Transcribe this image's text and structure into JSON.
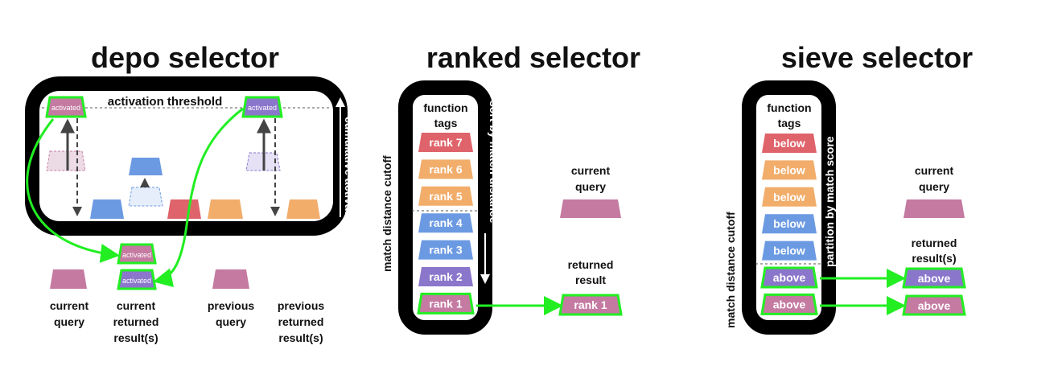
{
  "colors": {
    "pink": "#c47aa1",
    "pink_faint": "#ecdbe5",
    "blue": "#6b9ae2",
    "blue_faint": "#e6eefb",
    "red": "#df636a",
    "orange": "#f2ad6b",
    "purple": "#8a76cb",
    "purple_faint": "#e6e1f5",
    "green": "#22ee22"
  },
  "depo": {
    "title": "depo selector",
    "threshold_label": "activation threshold",
    "axis_label": "cumulative activation",
    "activated_label": "activated",
    "current_query": [
      "current",
      "query"
    ],
    "current_returned": [
      "current",
      "returned",
      "result(s)"
    ],
    "previous_query": [
      "previous",
      "query"
    ],
    "previous_returned": [
      "previous",
      "returned",
      "result(s)"
    ]
  },
  "ranked": {
    "title": "ranked selector",
    "function_tags": [
      "function",
      "tags"
    ],
    "cutoff_label": "match distance cutoff",
    "sort_label": "sort by match distance",
    "ranks": [
      "rank 7",
      "rank 6",
      "rank 5",
      "rank 4",
      "rank 3",
      "rank 2",
      "rank 1"
    ],
    "current_query": [
      "current",
      "query"
    ],
    "returned_result": [
      "returned",
      "result"
    ],
    "returned_tag": "rank 1"
  },
  "sieve": {
    "title": "sieve selector",
    "function_tags": [
      "function",
      "tags"
    ],
    "cutoff_label": "match distance cutoff",
    "partition_label": "partition  by match  score",
    "tags": [
      "below",
      "below",
      "below",
      "below",
      "below",
      "above",
      "above"
    ],
    "current_query": [
      "current",
      "query"
    ],
    "returned_results": [
      "returned",
      "result(s)"
    ],
    "returned_tags": [
      "above",
      "above"
    ]
  }
}
